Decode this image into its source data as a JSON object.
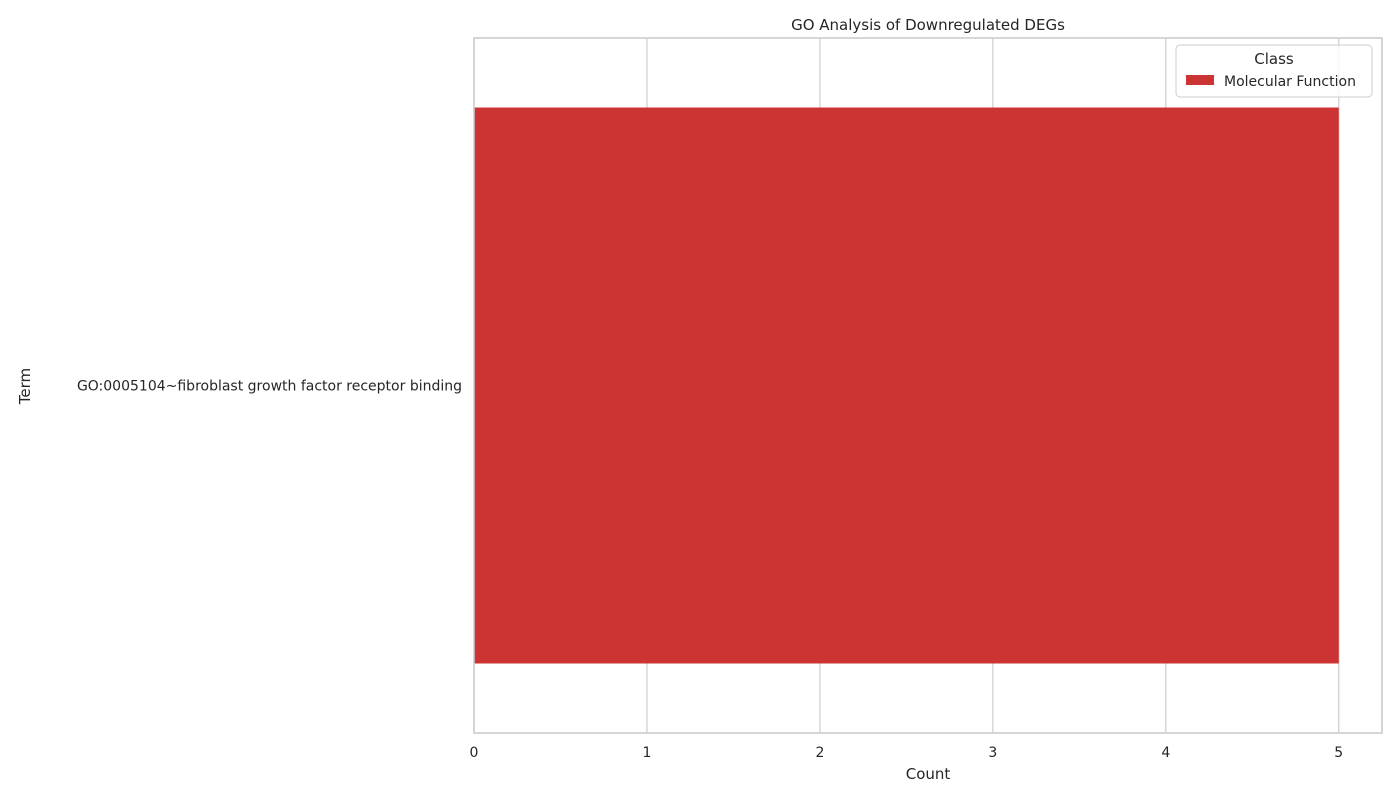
{
  "chart_data": {
    "type": "bar",
    "orientation": "horizontal",
    "title": "GO Analysis of Downregulated DEGs",
    "xlabel": "Count",
    "ylabel": "Term",
    "categories": [
      "GO:0005104~fibroblast growth factor receptor binding"
    ],
    "series": [
      {
        "name": "Molecular Function",
        "values": [
          5
        ],
        "color": "#cc3333"
      }
    ],
    "xlim": [
      0,
      5.25
    ],
    "xticks": [
      "0",
      "1",
      "2",
      "3",
      "4",
      "5"
    ],
    "grid": true,
    "legend": {
      "title": "Class",
      "placement": "top-right"
    }
  }
}
